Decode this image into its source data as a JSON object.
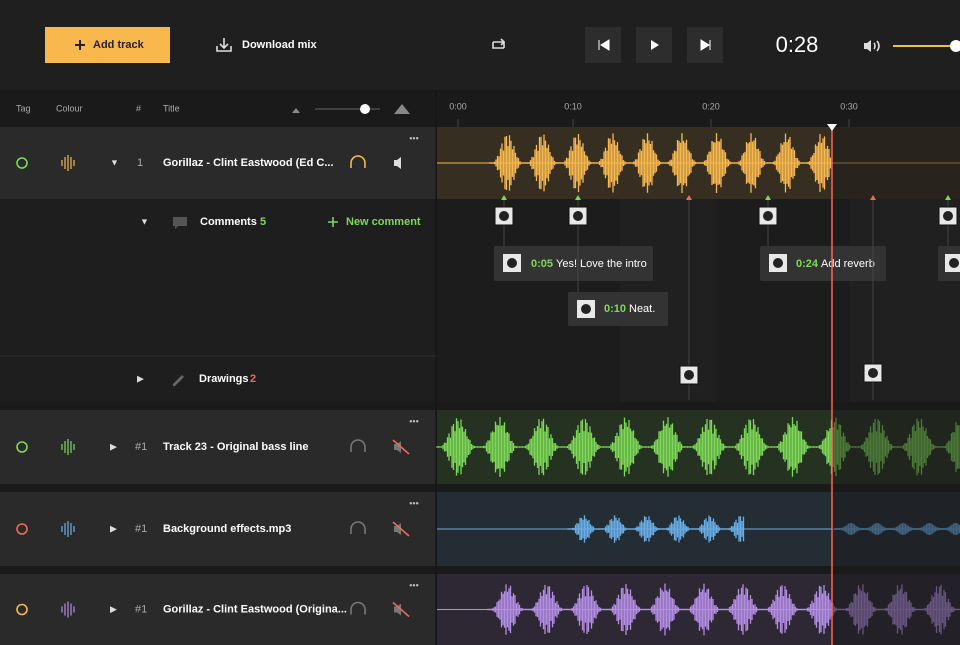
{
  "toolbar": {
    "add_track": "Add track",
    "download_mix": "Download mix",
    "time": "0:28"
  },
  "header": {
    "tag": "Tag",
    "colour": "Colour",
    "number": "#",
    "title": "Title"
  },
  "timeline": [
    "0:00",
    "0:10",
    "0:20",
    "0:30"
  ],
  "tracks": [
    {
      "number": 1,
      "title": "Gorillaz - Clint Eastwood (Ed C..."
    },
    {
      "number": "#1",
      "title": "Track 23 - Original bass line"
    },
    {
      "number": "#1",
      "title": "Background effects.mp3"
    },
    {
      "number": "#1",
      "title": "Gorillaz - Clint Eastwood (Origina..."
    }
  ],
  "comments": {
    "label": "Comments",
    "count": 5,
    "new": "New comment",
    "items": [
      {
        "time": "0:05",
        "text": "Yes! Love the intro"
      },
      {
        "time": "0:10",
        "text": "Neat."
      },
      {
        "time": "0:24",
        "text": "Add reverb"
      }
    ]
  },
  "drawings": {
    "label": "Drawings",
    "count": 2
  }
}
